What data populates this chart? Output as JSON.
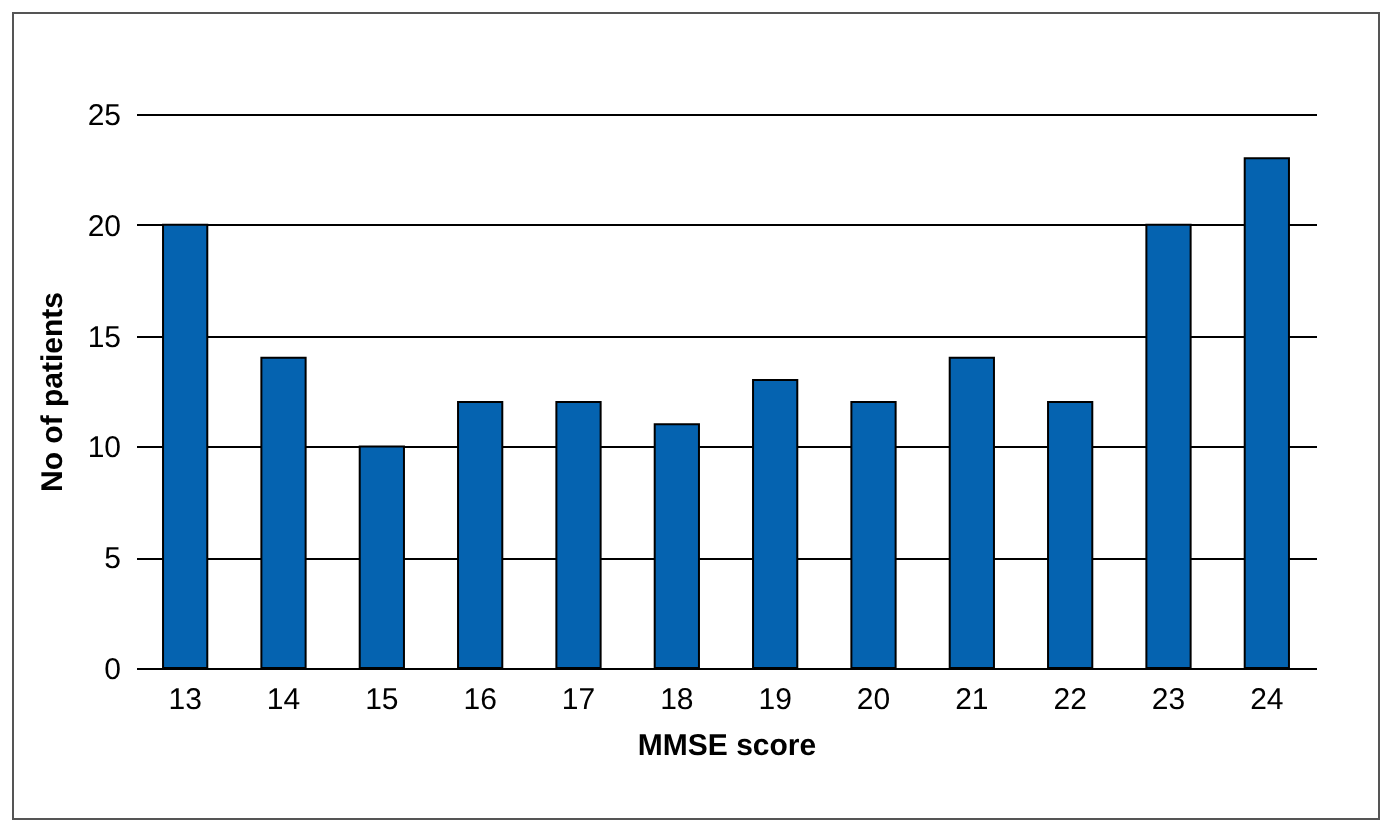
{
  "chart_data": {
    "type": "bar",
    "xlabel": "MMSE score",
    "ylabel": "No of patients",
    "categories": [
      "13",
      "14",
      "15",
      "16",
      "17",
      "18",
      "19",
      "20",
      "21",
      "22",
      "23",
      "24"
    ],
    "values": [
      20,
      14,
      10,
      12,
      12,
      11,
      13,
      12,
      14,
      12,
      20,
      23
    ],
    "color": "#0563b0",
    "ylim": [
      0,
      25
    ],
    "yticks": [
      0,
      5,
      10,
      15,
      20,
      25
    ],
    "grid": "y"
  }
}
